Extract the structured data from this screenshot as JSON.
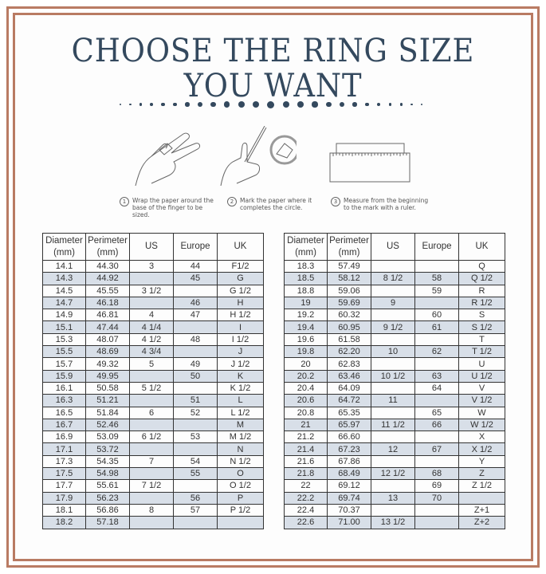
{
  "title": {
    "line1": "CHOOSE THE RING SIZE",
    "line2": "YOU WANT"
  },
  "colors": {
    "border": "#b97b63",
    "title": "#34495e",
    "row_stripe": "#d8dfe8"
  },
  "steps": [
    {
      "num": "1",
      "text": "Wrap the paper around the base of the finger to be sized."
    },
    {
      "num": "2",
      "text": "Mark the paper where it completes the circle."
    },
    {
      "num": "3",
      "text": "Measure from the beginning to the mark with a ruler."
    }
  ],
  "headers": [
    "Diameter (mm)",
    "Perimeter (mm)",
    "US",
    "Europe",
    "UK"
  ],
  "table_left": [
    [
      "14.1",
      "44.30",
      "3",
      "44",
      "F1/2"
    ],
    [
      "14.3",
      "44.92",
      "",
      "45",
      "G"
    ],
    [
      "14.5",
      "45.55",
      "3 1/2",
      "",
      "G 1/2"
    ],
    [
      "14.7",
      "46.18",
      "",
      "46",
      "H"
    ],
    [
      "14.9",
      "46.81",
      "4",
      "47",
      "H 1/2"
    ],
    [
      "15.1",
      "47.44",
      "4 1/4",
      "",
      "I"
    ],
    [
      "15.3",
      "48.07",
      "4 1/2",
      "48",
      "I 1/2"
    ],
    [
      "15.5",
      "48.69",
      "4 3/4",
      "",
      "J"
    ],
    [
      "15.7",
      "49.32",
      "5",
      "49",
      "J 1/2"
    ],
    [
      "15.9",
      "49.95",
      "",
      "50",
      "K"
    ],
    [
      "16.1",
      "50.58",
      "5 1/2",
      "",
      "K 1/2"
    ],
    [
      "16.3",
      "51.21",
      "",
      "51",
      "L"
    ],
    [
      "16.5",
      "51.84",
      "6",
      "52",
      "L 1/2"
    ],
    [
      "16.7",
      "52.46",
      "",
      "",
      "M"
    ],
    [
      "16.9",
      "53.09",
      "6 1/2",
      "53",
      "M 1/2"
    ],
    [
      "17.1",
      "53.72",
      "",
      "",
      "N"
    ],
    [
      "17.3",
      "54.35",
      "7",
      "54",
      "N 1/2"
    ],
    [
      "17.5",
      "54.98",
      "",
      "55",
      "O"
    ],
    [
      "17.7",
      "55.61",
      "7 1/2",
      "",
      "O 1/2"
    ],
    [
      "17.9",
      "56.23",
      "",
      "56",
      "P"
    ],
    [
      "18.1",
      "56.86",
      "8",
      "57",
      "P 1/2"
    ],
    [
      "18.2",
      "57.18",
      "",
      "",
      ""
    ]
  ],
  "table_right": [
    [
      "18.3",
      "57.49",
      "",
      "",
      "Q"
    ],
    [
      "18.5",
      "58.12",
      "8 1/2",
      "58",
      "Q 1/2"
    ],
    [
      "18.8",
      "59.06",
      "",
      "59",
      "R"
    ],
    [
      "19",
      "59.69",
      "9",
      "",
      "R 1/2"
    ],
    [
      "19.2",
      "60.32",
      "",
      "60",
      "S"
    ],
    [
      "19.4",
      "60.95",
      "9 1/2",
      "61",
      "S 1/2"
    ],
    [
      "19.6",
      "61.58",
      "",
      "",
      "T"
    ],
    [
      "19.8",
      "62.20",
      "10",
      "62",
      "T 1/2"
    ],
    [
      "20",
      "62.83",
      "",
      "",
      "U"
    ],
    [
      "20.2",
      "63.46",
      "10 1/2",
      "63",
      "U 1/2"
    ],
    [
      "20.4",
      "64.09",
      "",
      "64",
      "V"
    ],
    [
      "20.6",
      "64.72",
      "11",
      "",
      "V 1/2"
    ],
    [
      "20.8",
      "65.35",
      "",
      "65",
      "W"
    ],
    [
      "21",
      "65.97",
      "11 1/2",
      "66",
      "W 1/2"
    ],
    [
      "21.2",
      "66.60",
      "",
      "",
      "X"
    ],
    [
      "21.4",
      "67.23",
      "12",
      "67",
      "X 1/2"
    ],
    [
      "21.6",
      "67.86",
      "",
      "",
      "Y"
    ],
    [
      "21.8",
      "68.49",
      "12 1/2",
      "68",
      "Z"
    ],
    [
      "22",
      "69.12",
      "",
      "69",
      "Z 1/2"
    ],
    [
      "22.2",
      "69.74",
      "13",
      "70",
      ""
    ],
    [
      "22.4",
      "70.37",
      "",
      "",
      "Z+1"
    ],
    [
      "22.6",
      "71.00",
      "13 1/2",
      "",
      "Z+2"
    ]
  ]
}
